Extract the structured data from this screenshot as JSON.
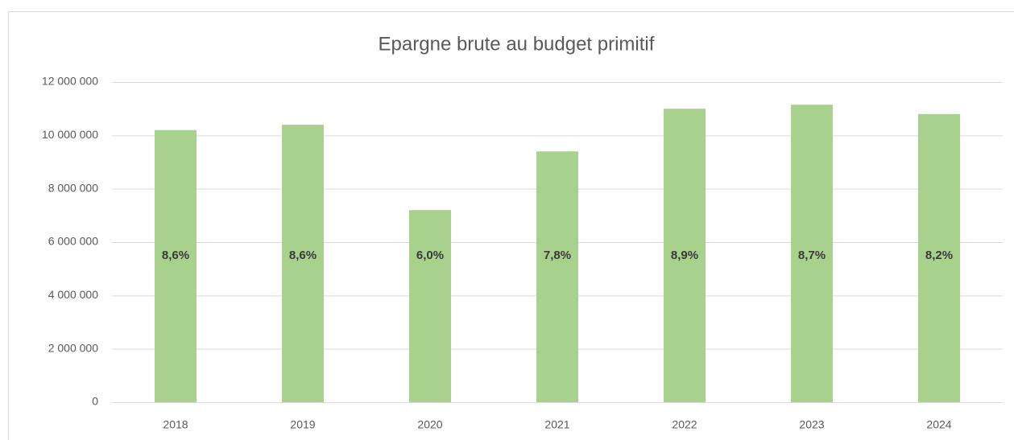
{
  "chart_data": {
    "type": "bar",
    "title": "Epargne brute au budget primitif",
    "categories": [
      "2018",
      "2019",
      "2020",
      "2021",
      "2022",
      "2023",
      "2024"
    ],
    "values": [
      10200000,
      10400000,
      7200000,
      9400000,
      11000000,
      11150000,
      10800000
    ],
    "bar_labels": [
      "8,6%",
      "8,6%",
      "6,0%",
      "7,8%",
      "8,9%",
      "8,7%",
      "8,2%"
    ],
    "color": "#a9d18e",
    "ylim": [
      0,
      12000000
    ],
    "yticks": [
      0,
      {
        "value": 2000000,
        "label": "2 000 000"
      },
      {
        "value": 4000000,
        "label": "4 000 000"
      },
      {
        "value": 6000000,
        "label": "6 000 000"
      },
      {
        "value": 8000000,
        "label": "8 000 000"
      },
      {
        "value": 10000000,
        "label": "10 000 000"
      },
      {
        "value": 12000000,
        "label": "12 000 000"
      }
    ],
    "grid": true
  }
}
